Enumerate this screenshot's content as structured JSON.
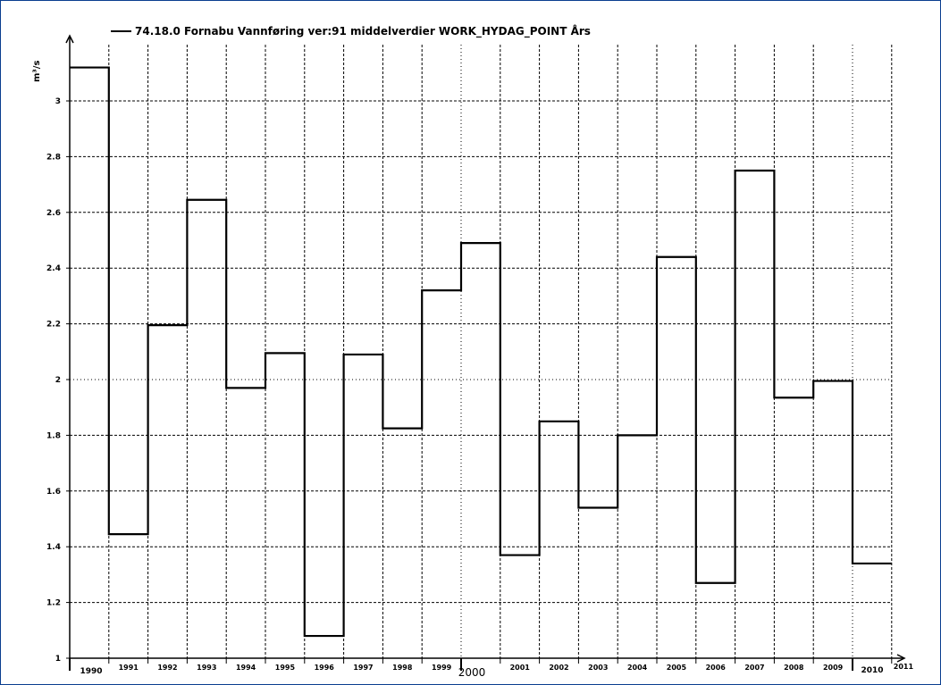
{
  "chart_data": {
    "type": "line",
    "step": true,
    "series": [
      {
        "name": "74.18.0 Fornabu Vannføring ver:91 middelverdier WORK_HYDAG_POINT Års",
        "color": "#000000",
        "x": [
          "1990",
          "1991",
          "1992",
          "1993",
          "1994",
          "1995",
          "1996",
          "1997",
          "1998",
          "1999",
          "2000",
          "2001",
          "2002",
          "2003",
          "2004",
          "2005",
          "2006",
          "2007",
          "2008",
          "2009",
          "2010"
        ],
        "values": [
          3.12,
          1.445,
          2.195,
          2.645,
          1.97,
          2.095,
          1.08,
          2.09,
          1.825,
          2.32,
          2.49,
          1.37,
          1.85,
          1.54,
          1.8,
          2.44,
          1.27,
          2.75,
          1.935,
          1.995,
          1.34
        ]
      }
    ],
    "xlim": [
      1990,
      2011
    ],
    "ylim": [
      1,
      3.2
    ],
    "yticks": [
      "1",
      "1.2",
      "1.4",
      "1.6",
      "1.8",
      "2",
      "2.2",
      "2.4",
      "2.6",
      "2.8",
      "3"
    ],
    "xticks": [
      "1990",
      "1991",
      "1992",
      "1993",
      "1994",
      "1995",
      "1996",
      "1997",
      "1998",
      "1999",
      "2000",
      "2001",
      "2002",
      "2003",
      "2004",
      "2005",
      "2006",
      "2007",
      "2008",
      "2009",
      "2010",
      "2011"
    ],
    "ylabel": "m³/s",
    "grid": true,
    "legend_position": "top-left"
  }
}
